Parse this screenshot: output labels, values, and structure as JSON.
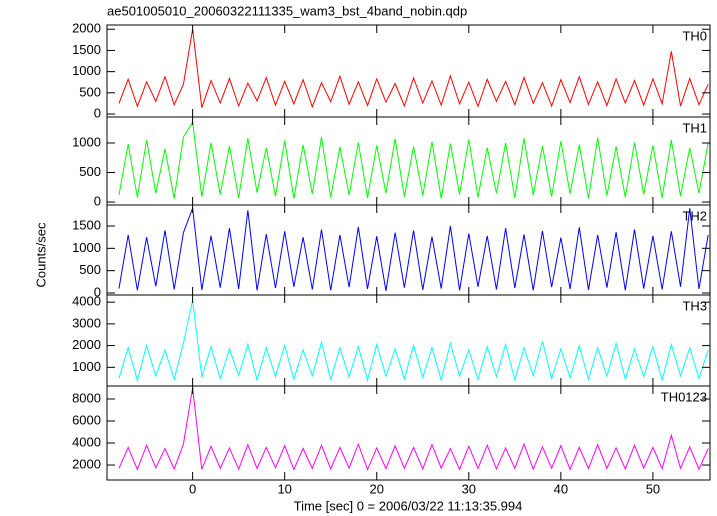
{
  "chart_data": {
    "type": "line",
    "title": "ae501005010_20060322111335_wam3_bst_4band_nobin.qdp",
    "xlabel": "Time [sec] 0 = 2006/03/22 11:13:35.994",
    "ylabel": "Counts/sec",
    "xlim": [
      -9.3,
      56.2
    ],
    "xticks": [
      0,
      10,
      20,
      30,
      40,
      50
    ],
    "x": [
      -8,
      -7,
      -6,
      -5,
      -4,
      -3,
      -2,
      -1,
      0,
      1,
      2,
      3,
      4,
      5,
      6,
      7,
      8,
      9,
      10,
      11,
      12,
      13,
      14,
      15,
      16,
      17,
      18,
      19,
      20,
      21,
      22,
      23,
      24,
      25,
      26,
      27,
      28,
      29,
      30,
      31,
      32,
      33,
      34,
      35,
      36,
      37,
      38,
      39,
      40,
      41,
      42,
      43,
      44,
      45,
      46,
      47,
      48,
      49,
      50,
      51,
      52,
      53,
      54,
      55,
      56
    ],
    "series": [
      {
        "name": "TH0",
        "color": "#ff0000",
        "ylim": [
          -70,
          2100
        ],
        "yticks": [
          0,
          500,
          1000,
          1500,
          2000
        ],
        "values": [
          250,
          820,
          180,
          760,
          300,
          880,
          220,
          700,
          2000,
          150,
          790,
          260,
          840,
          190,
          730,
          310,
          860,
          210,
          770,
          240,
          810,
          170,
          740,
          290,
          890,
          230,
          760,
          200,
          830,
          280,
          720,
          190,
          850,
          260,
          780,
          210,
          900,
          240,
          750,
          180,
          820,
          300,
          770,
          220,
          860,
          250,
          740,
          190,
          810,
          270,
          880,
          230,
          760,
          200,
          830,
          260,
          790,
          210,
          830,
          240,
          1480,
          190,
          840,
          220,
          700
        ]
      },
      {
        "name": "TH1",
        "color": "#00ff00",
        "ylim": [
          -50,
          1440
        ],
        "yticks": [
          0,
          500,
          1000
        ],
        "values": [
          120,
          980,
          80,
          1050,
          150,
          900,
          60,
          1100,
          1350,
          90,
          1000,
          130,
          950,
          70,
          1080,
          160,
          920,
          100,
          1040,
          60,
          970,
          140,
          1100,
          80,
          930,
          120,
          1010,
          70,
          960,
          150,
          1070,
          90,
          940,
          110,
          1020,
          60,
          990,
          130,
          1060,
          80,
          920,
          150,
          1000,
          70,
          1080,
          120,
          950,
          90,
          1030,
          140,
          970,
          60,
          1090,
          110,
          940,
          80,
          1010,
          130,
          960,
          70,
          1050,
          100,
          920,
          150,
          1000
        ]
      },
      {
        "name": "TH2",
        "color": "#0000ff",
        "ylim": [
          -45,
          1970
        ],
        "yticks": [
          0,
          500,
          1000,
          1500
        ],
        "values": [
          100,
          1300,
          60,
          1250,
          150,
          1400,
          80,
          1350,
          1900,
          70,
          1280,
          120,
          1450,
          90,
          1850,
          60,
          1320,
          110,
          1380,
          140,
          1250,
          80,
          1420,
          60,
          1300,
          130,
          1480,
          90,
          1270,
          50,
          1350,
          120,
          1400,
          70,
          1260,
          100,
          1500,
          60,
          1330,
          140,
          1280,
          80,
          1450,
          110,
          1310,
          60,
          1390,
          130,
          1240,
          90,
          1470,
          70,
          1300,
          120,
          1360,
          60,
          1420,
          100,
          1280,
          80,
          1380,
          140,
          1900,
          90,
          1300
        ]
      },
      {
        "name": "TH3",
        "color": "#00ffff",
        "ylim": [
          140,
          4330
        ],
        "yticks": [
          1000,
          2000,
          3000,
          4000
        ],
        "values": [
          500,
          1900,
          400,
          2000,
          600,
          1800,
          450,
          2100,
          4100,
          550,
          1950,
          480,
          1850,
          620,
          2050,
          420,
          1900,
          580,
          2000,
          460,
          1800,
          600,
          2150,
          430,
          1900,
          560,
          1950,
          410,
          2050,
          590,
          1850,
          470,
          2000,
          540,
          1900,
          420,
          2100,
          600,
          1800,
          450,
          1950,
          570,
          2050,
          430,
          1900,
          610,
          2200,
          480,
          1850,
          520,
          2000,
          440,
          1900,
          590,
          2100,
          460,
          1850,
          570,
          1950,
          420,
          2050,
          600,
          1900,
          480,
          1800
        ]
      },
      {
        "name": "TH0123",
        "color": "#ff00ff",
        "ylim": [
          640,
          9180
        ],
        "yticks": [
          2000,
          4000,
          6000,
          8000
        ],
        "values": [
          1700,
          3600,
          1600,
          3800,
          1750,
          3500,
          1650,
          3900,
          9000,
          1600,
          3700,
          1700,
          3550,
          1620,
          3850,
          1680,
          3600,
          1750,
          3750,
          1600,
          3500,
          1700,
          3800,
          1650,
          3600,
          1720,
          3900,
          1600,
          3550,
          1680,
          3750,
          1700,
          3600,
          1650,
          3850,
          1720,
          3500,
          1600,
          3700,
          1690,
          3800,
          1650,
          3550,
          1700,
          3900,
          1620,
          3650,
          1710,
          3750,
          1600,
          3600,
          1680,
          3850,
          1700,
          3550,
          1640,
          3800,
          1720,
          3600,
          1660,
          4700,
          1700,
          3650,
          1620,
          3500
        ]
      }
    ]
  }
}
